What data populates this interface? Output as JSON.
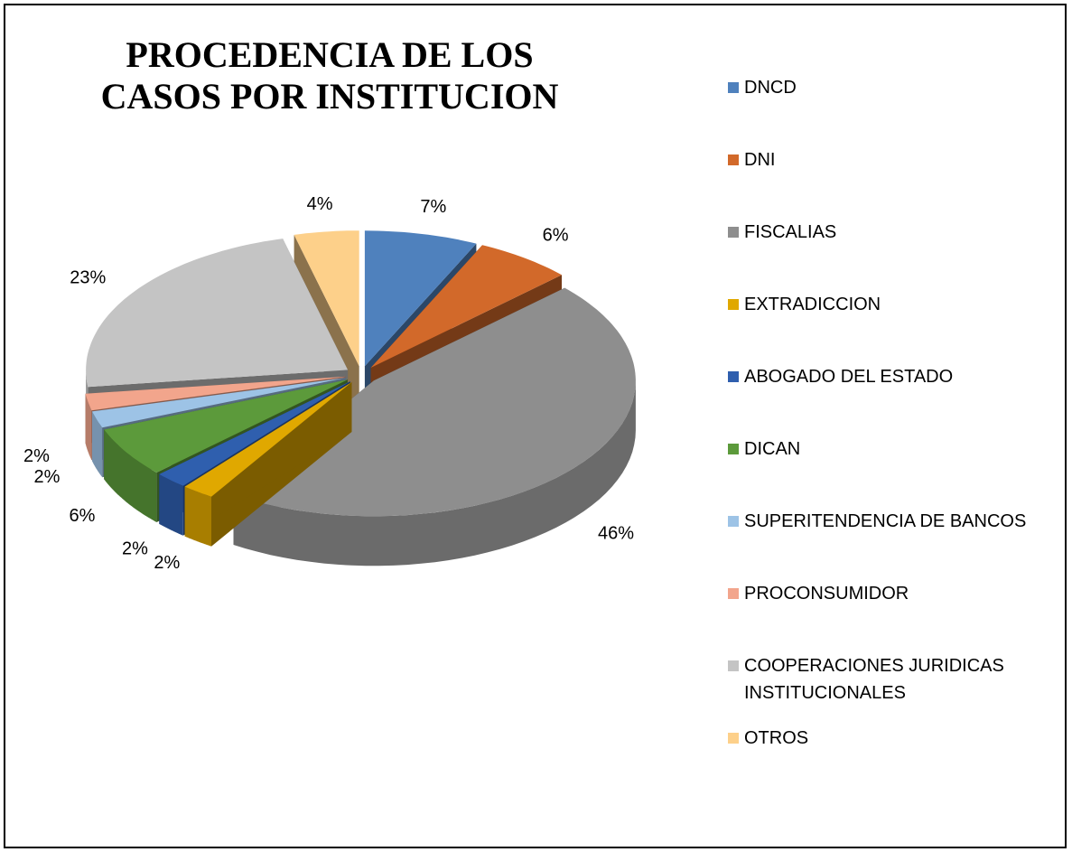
{
  "chart_data": {
    "type": "pie3d",
    "title": "PROCEDENCIA DE LOS CASOS POR INSTITUCION",
    "categories": [
      "DNCD",
      "DNI",
      "FISCALIAS",
      "EXTRADICCION",
      "ABOGADO DEL ESTADO",
      "DICAN",
      "SUPERITENDENCIA DE BANCOS",
      "PROCONSUMIDOR",
      "COOPERACIONES JURIDICAS INSTITUCIONALES",
      "OTROS"
    ],
    "values": [
      7,
      6,
      46,
      2,
      2,
      6,
      2,
      2,
      23,
      4
    ],
    "value_labels": [
      "7%",
      "6%",
      "46%",
      "2%",
      "2%",
      "6%",
      "2%",
      "2%",
      "23%",
      "4%"
    ],
    "colors": [
      "#4f81bd",
      "#d2692a",
      "#8e8e8e",
      "#e0a800",
      "#2f5fae",
      "#5c9a3b",
      "#9dc3e6",
      "#f2a58c",
      "#c4c4c4",
      "#fdd08a"
    ],
    "legend": "right"
  }
}
